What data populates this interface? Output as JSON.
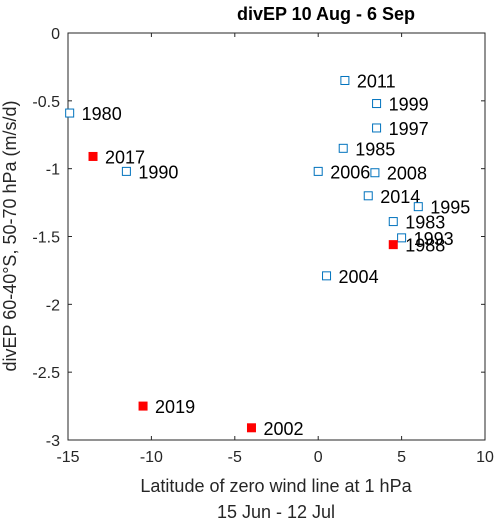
{
  "chart_data": {
    "type": "scatter",
    "title": "divEP 10 Aug - 6 Sep",
    "xlabel": "Latitude of zero wind line at 1 hPa",
    "xlabel2": "15 Jun - 12 Jul",
    "ylabel": "divEP 60-40°S, 50-70 hPa (m/s/d)",
    "xlim": [
      -15,
      10
    ],
    "ylim": [
      -3,
      0
    ],
    "xticks": [
      -15,
      -10,
      -5,
      0,
      5,
      10
    ],
    "yticks": [
      0,
      -0.5,
      -1,
      -1.5,
      -2,
      -2.5,
      -3
    ],
    "xtick_labels": [
      "-15",
      "-10",
      "-5",
      "0",
      "5",
      "10"
    ],
    "ytick_labels": [
      "0",
      "-0.5",
      "-1",
      "-1.5",
      "-2",
      "-2.5",
      "-3"
    ],
    "grid": false,
    "marker_colors": {
      "open": "#0072BD",
      "filled": "#FF0000"
    },
    "points": [
      {
        "label": "1980",
        "x": -14.9,
        "y": -0.59,
        "filled": false
      },
      {
        "label": "2017",
        "x": -13.5,
        "y": -0.91,
        "filled": true
      },
      {
        "label": "1990",
        "x": -11.5,
        "y": -1.02,
        "filled": false
      },
      {
        "label": "2011",
        "x": 1.6,
        "y": -0.35,
        "filled": false
      },
      {
        "label": "1999",
        "x": 3.5,
        "y": -0.52,
        "filled": false
      },
      {
        "label": "1997",
        "x": 3.5,
        "y": -0.7,
        "filled": false
      },
      {
        "label": "1985",
        "x": 1.5,
        "y": -0.85,
        "filled": false
      },
      {
        "label": "2006",
        "x": 0.0,
        "y": -1.02,
        "filled": false
      },
      {
        "label": "2008",
        "x": 3.4,
        "y": -1.03,
        "filled": false
      },
      {
        "label": "2014",
        "x": 3.0,
        "y": -1.2,
        "filled": false
      },
      {
        "label": "1995",
        "x": 6.0,
        "y": -1.28,
        "filled": false
      },
      {
        "label": "1983",
        "x": 4.5,
        "y": -1.39,
        "filled": false
      },
      {
        "label": "1993",
        "x": 5.0,
        "y": -1.51,
        "filled": false
      },
      {
        "label": "1988",
        "x": 4.5,
        "y": -1.56,
        "filled": true
      },
      {
        "label": "2004",
        "x": 0.5,
        "y": -1.79,
        "filled": false
      },
      {
        "label": "2019",
        "x": -10.5,
        "y": -2.75,
        "filled": true
      },
      {
        "label": "2002",
        "x": -4.0,
        "y": -2.91,
        "filled": true
      }
    ]
  }
}
